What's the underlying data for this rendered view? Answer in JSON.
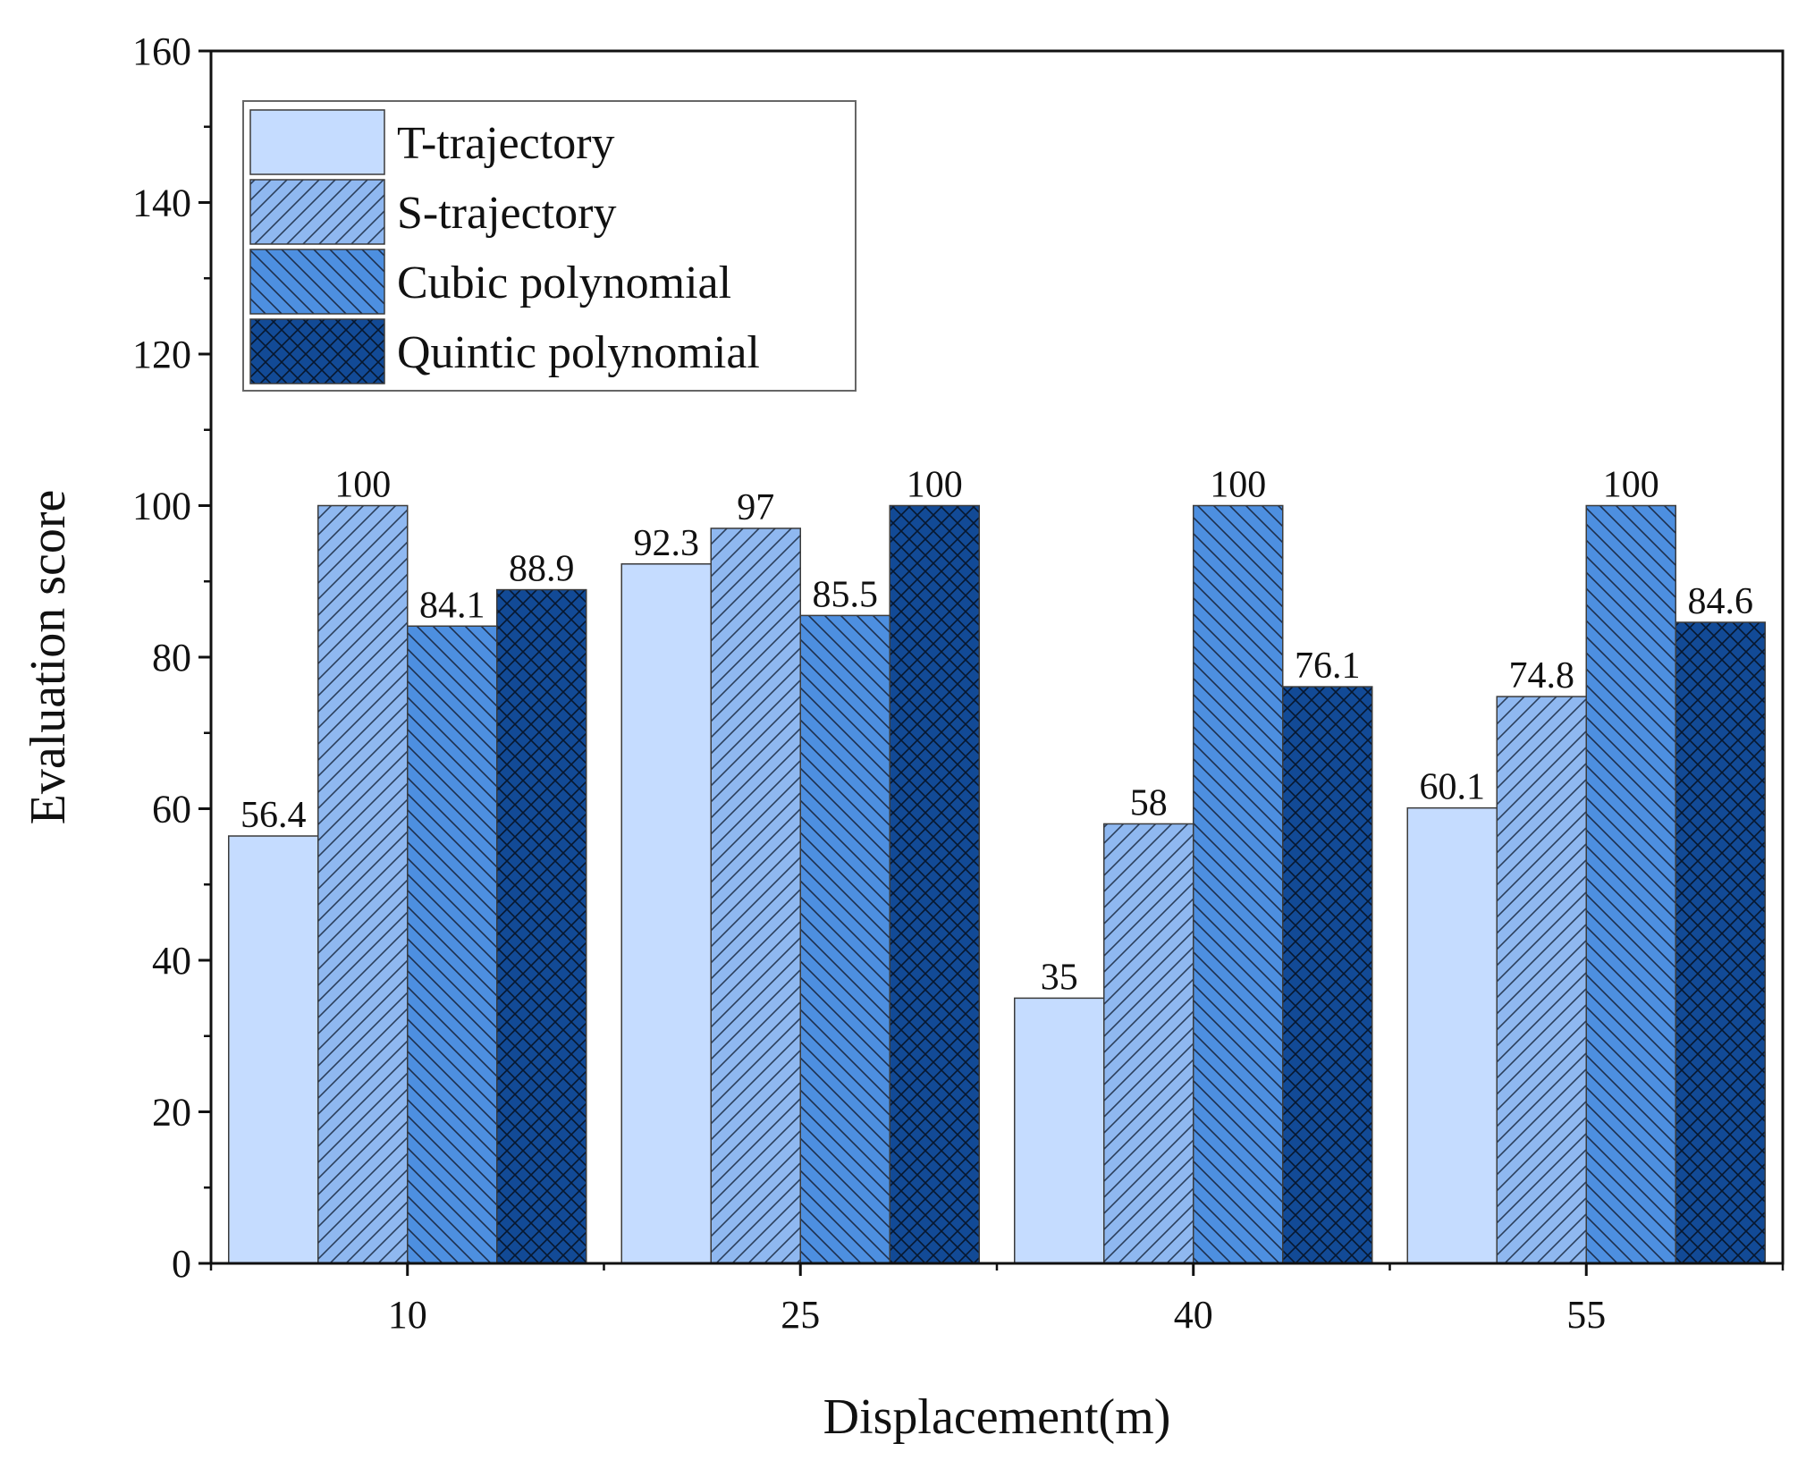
{
  "chart_data": {
    "type": "bar",
    "title": "",
    "xlabel": "Displacement(m)",
    "ylabel": "Evaluation score",
    "categories": [
      "10",
      "25",
      "40",
      "55"
    ],
    "ylim": [
      0,
      160
    ],
    "yticks": [
      0,
      20,
      40,
      60,
      80,
      100,
      120,
      140,
      160
    ],
    "legend_position": "top-left",
    "series": [
      {
        "name": "T-trajectory",
        "values": [
          56.4,
          92.3,
          35,
          60.1
        ],
        "labels": [
          "56.4",
          "92.3",
          "35",
          "60.1"
        ],
        "color": "#c5dcff",
        "pattern": "solid"
      },
      {
        "name": "S-trajectory",
        "values": [
          100,
          97,
          58,
          74.8
        ],
        "labels": [
          "100",
          "97",
          "58",
          "74.8"
        ],
        "color": "#8fb8f0",
        "pattern": "forward-diagonal"
      },
      {
        "name": "Cubic polynomial",
        "values": [
          84.1,
          85.5,
          100,
          100
        ],
        "labels": [
          "84.1",
          "85.5",
          "100",
          "100"
        ],
        "color": "#4d8fe0",
        "pattern": "back-diagonal"
      },
      {
        "name": "Quintic polynomial",
        "values": [
          88.9,
          100,
          76.1,
          84.6
        ],
        "labels": [
          "88.9",
          "100",
          "76.1",
          "84.6"
        ],
        "color": "#124a96",
        "pattern": "crosshatch"
      }
    ]
  }
}
